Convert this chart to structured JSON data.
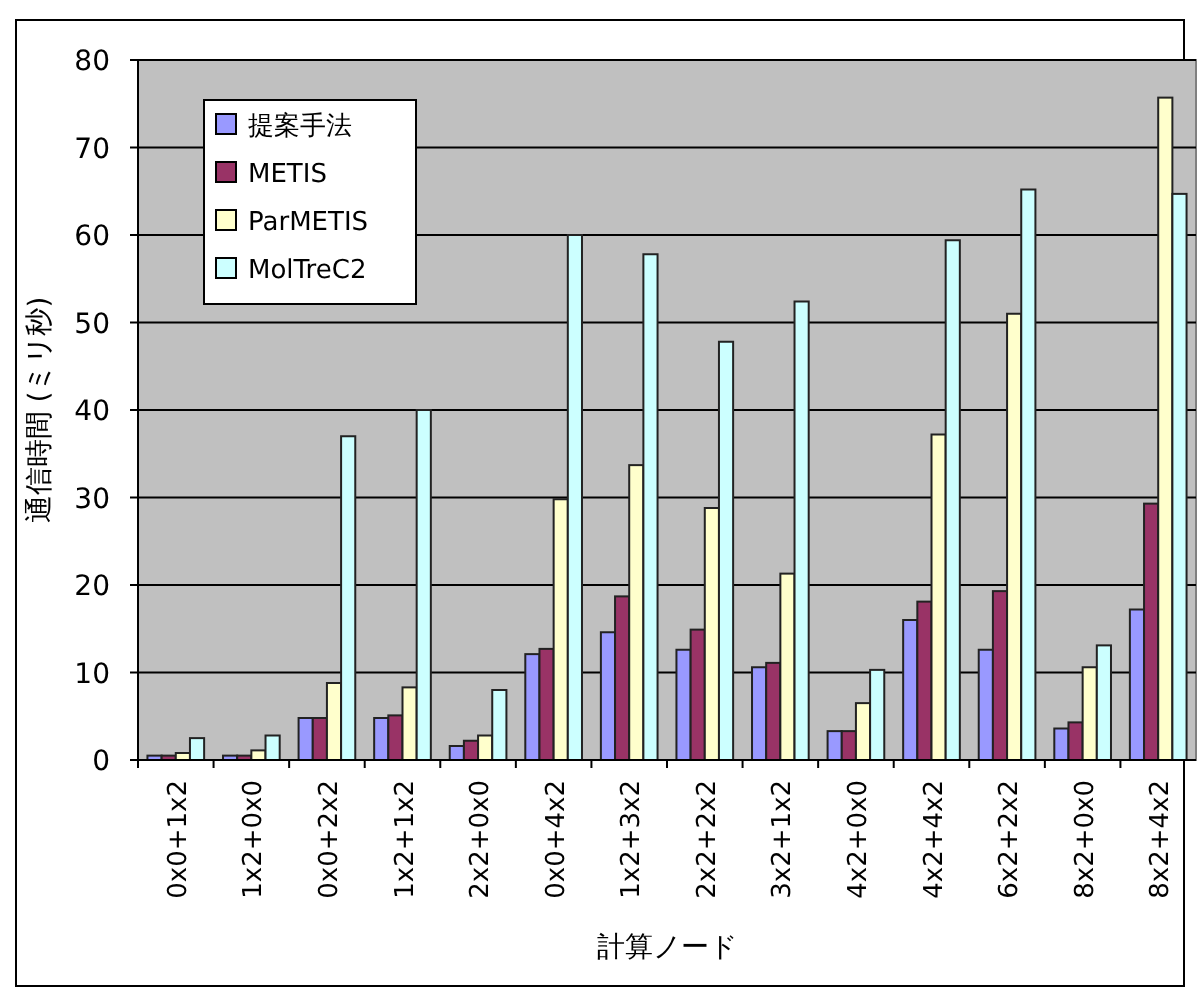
{
  "chart_data": {
    "type": "bar",
    "xlabel": "計算ノード",
    "ylabel": "通信時間 (ミリ秒)",
    "categories": [
      "0x0+1x2",
      "1x2+0x0",
      "0x0+2x2",
      "1x2+1x2",
      "2x2+0x0",
      "0x0+4x2",
      "1x2+3x2",
      "2x2+2x2",
      "3x2+1x2",
      "4x2+0x0",
      "4x2+4x2",
      "6x2+2x2",
      "8x2+0x0",
      "8x2+4x2"
    ],
    "series": [
      {
        "name": "提案手法",
        "color": "#9999ff",
        "values": [
          0.5,
          0.5,
          4.8,
          4.8,
          1.6,
          12.1,
          14.6,
          12.6,
          10.6,
          3.3,
          16.0,
          12.6,
          3.6,
          17.2
        ]
      },
      {
        "name": "METIS",
        "color": "#993366",
        "values": [
          0.5,
          0.5,
          4.8,
          5.1,
          2.2,
          12.7,
          18.7,
          14.9,
          11.1,
          3.3,
          18.1,
          19.3,
          4.3,
          29.3
        ]
      },
      {
        "name": "ParMETIS",
        "color": "#ffffcc",
        "values": [
          0.8,
          1.1,
          8.8,
          8.3,
          2.8,
          29.8,
          33.7,
          28.8,
          21.3,
          6.5,
          37.2,
          51.0,
          10.6,
          75.7
        ]
      },
      {
        "name": "MolTreC2",
        "color": "#ccffff",
        "values": [
          2.5,
          2.8,
          37,
          40,
          8.0,
          60,
          57.8,
          47.8,
          52.4,
          10.3,
          59.4,
          65.2,
          13.1,
          64.7
        ]
      }
    ],
    "ylim": [
      0,
      80
    ],
    "yticks": [
      0,
      10,
      20,
      30,
      40,
      50,
      60,
      70,
      80
    ],
    "grid": "y",
    "legend": "top left"
  }
}
